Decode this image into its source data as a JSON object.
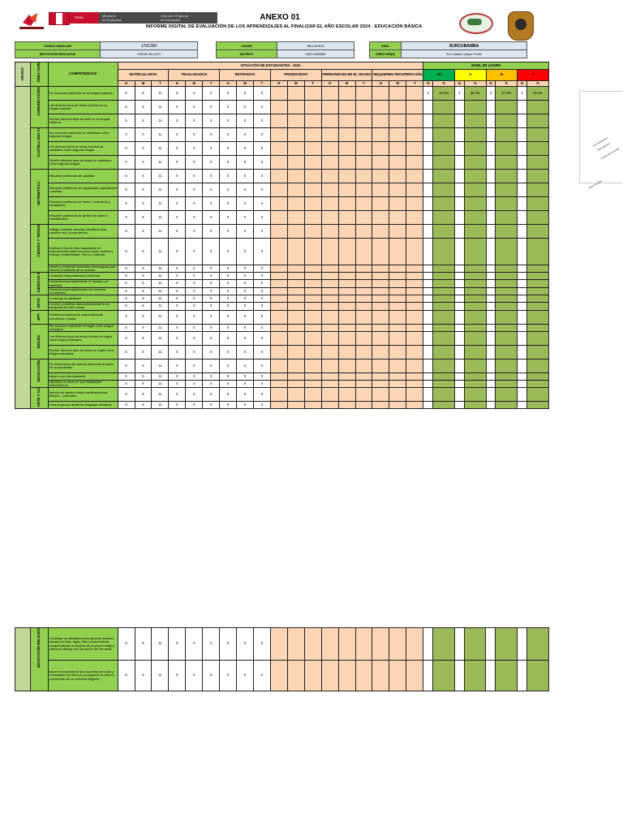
{
  "header": {
    "anexo": "ANEXO 01",
    "informe": "INFORME DIGITAL DE EVALUACIÓN DE LOS APRENDIZAJES AL FINALIZAR EL AÑO ESCOLAR 2024 - EDUCACIÓN BÁSICA",
    "flag_text": "PERÚ",
    "ministry_lines": [
      "Ministerio",
      "de Educación"
    ],
    "regional_lines": [
      "Dirección Regional",
      "de Educación"
    ]
  },
  "info": {
    "codigo_modular_label": "CODIGO MODULAR",
    "codigo_modular": "1701390",
    "lugar_label": "LUGAR",
    "lugar": "BELLAVISTA",
    "ugel_label": "UGEL",
    "ugel": "SURCUBAMBA",
    "institucion_label": "INSTITUCIÓN EDUCATIVA",
    "institucion": "CESAR VALLEJO",
    "distrito_label": "DISTRITO",
    "distrito": "SURCUBAMBA",
    "director_label": "DIRECTOR(A)",
    "director": "Prof. Alcides Quispe Porras"
  },
  "table_headers": {
    "grado": "GRADO",
    "area": "ÁREA CURRICULAR",
    "competencias": "COMPETENCIAS",
    "situacion": "SITUACIÓN DE ESTUDIANTES - 2023",
    "nivel": "NIVEL DE LOGRO",
    "groups": [
      "MATRICULADOS",
      "TRASLADADOS",
      "RETIRADOS",
      "PROMOVIDOS",
      "PERMANECEN EN EL GRADO",
      "REQUIEREN RECUPERACIÓN"
    ],
    "hmt": [
      "H",
      "M",
      "T"
    ],
    "levels": [
      "AD",
      "A",
      "B",
      "C"
    ],
    "np": [
      "N",
      "%"
    ]
  },
  "areas": [
    {
      "name": "COMUNICACIÓN",
      "rows": [
        {
          "c": "Se comunica oralmente en su lengua materna.",
          "v": [
            "5",
            "6",
            "11",
            "0",
            "0",
            "0",
            "0",
            "0",
            "0"
          ],
          "lv": [
            "2",
            "18.2%",
            "4",
            "36.4%",
            "3",
            "27.3%",
            "2",
            "18.2%"
          ]
        },
        {
          "c": "Lee diversos tipos de textos escritos en su lengua materna.",
          "v": [
            "5",
            "6",
            "11",
            "0",
            "0",
            "0",
            "0",
            "0",
            "0"
          ]
        },
        {
          "c": "Escribe diversos tipos de texto en su lengua materna.",
          "v": [
            "5",
            "6",
            "11",
            "0",
            "0",
            "0",
            "0",
            "0",
            "0"
          ]
        }
      ]
    },
    {
      "name": "CASTELLANO COMO SEGUNDA LENGUA",
      "rows": [
        {
          "c": "Se comunica oralmente en castellano como segunda lengua.",
          "v": [
            "0",
            "0",
            "11",
            "0",
            "0",
            "0",
            "0",
            "0",
            "0"
          ]
        },
        {
          "c": "Lee diversos tipos de textos escritos de castellano como segunda lengua.",
          "v": [
            "0",
            "0",
            "11",
            "0",
            "0",
            "0",
            "0",
            "0",
            "0"
          ]
        },
        {
          "c": "Escribe diversos tipos de textos en castellano como segunda lengua.",
          "v": [
            "0",
            "0",
            "11",
            "0",
            "0",
            "0",
            "0",
            "0",
            "0"
          ]
        }
      ]
    },
    {
      "name": "MATEMÁTICA",
      "rows": [
        {
          "c": "Resuelve problemas de cantidad.",
          "v": [
            "5",
            "6",
            "11",
            "0",
            "0",
            "0",
            "0",
            "0",
            "0"
          ]
        },
        {
          "c": "Resuelve problemas de regularidad, equivalencia y cambio.",
          "v": [
            "5",
            "6",
            "11",
            "0",
            "0",
            "0",
            "0",
            "0",
            "0"
          ]
        },
        {
          "c": "Resuelve problemas de forma, movimiento y localización.",
          "v": [
            "5",
            "6",
            "11",
            "0",
            "0",
            "0",
            "0",
            "0",
            "0"
          ]
        },
        {
          "c": "Resuelve problemas de gestión de datos e incertidumbre.",
          "v": [
            "5",
            "6",
            "11",
            "0",
            "0",
            "0",
            "0",
            "0",
            "0"
          ]
        }
      ]
    },
    {
      "name": "CIENCIA Y TECNOLOGÍA",
      "rows": [
        {
          "c": "Indaga mediante métodos científicos para construir sus conocimientos.",
          "v": [
            "5",
            "6",
            "11",
            "0",
            "0",
            "0",
            "0",
            "0",
            "0"
          ]
        },
        {
          "c": "Explica el mundo físico basándose en conocimientos sobre los seres vivos, materia y energía, biodiversidad, Tierra y Universo.",
          "v": [
            "5",
            "6",
            "11",
            "0",
            "0",
            "0",
            "0",
            "0",
            "0"
          ]
        },
        {
          "c": "Diseña y construye soluciones tecnológicas para resolver problemas de su entorno.",
          "v": [
            "5",
            "6",
            "11",
            "0",
            "0",
            "0",
            "0",
            "0",
            "0"
          ]
        }
      ]
    },
    {
      "name": "CIENCIAS SOCIALES",
      "rows": [
        {
          "c": "Construye interpretaciones históricas.",
          "v": [
            "5",
            "6",
            "11",
            "0",
            "0",
            "0",
            "0",
            "0",
            "0"
          ]
        },
        {
          "c": "Gestiona responsablemente el espacio y el ambiente.",
          "v": [
            "5",
            "6",
            "11",
            "0",
            "0",
            "0",
            "0",
            "0",
            "0"
          ]
        },
        {
          "c": "Gestiona responsablemente los recursos económicos.",
          "v": [
            "5",
            "6",
            "11",
            "0",
            "0",
            "0",
            "0",
            "0",
            "0"
          ]
        }
      ]
    },
    {
      "name": "DPCC",
      "rows": [
        {
          "c": "Construye su identidad.",
          "v": [
            "5",
            "6",
            "11",
            "0",
            "0",
            "0",
            "0",
            "0",
            "0"
          ]
        },
        {
          "c": "Convive y participa democráticamente en la búsqueda del bien común.",
          "v": [
            "5",
            "6",
            "11",
            "0",
            "0",
            "0",
            "0",
            "0",
            "0"
          ]
        }
      ]
    },
    {
      "name": "EPT",
      "rows": [
        {
          "c": "Gestiona proyectos de emprendimiento económico o social.",
          "v": [
            "5",
            "6",
            "11",
            "0",
            "0",
            "0",
            "0",
            "0",
            "0"
          ]
        }
      ]
    },
    {
      "name": "INGLÉS",
      "rows": [
        {
          "c": "Se comunica oralmente en inglés como lengua extranjera.",
          "v": [
            "5",
            "6",
            "11",
            "0",
            "0",
            "0",
            "0",
            "0",
            "0"
          ]
        },
        {
          "c": "Lee diversos tipos de textos escritos en inglés como lengua extranjera.",
          "v": [
            "5",
            "6",
            "11",
            "0",
            "0",
            "0",
            "0",
            "0",
            "0"
          ]
        },
        {
          "c": "Escribe diversos tipos de textos en inglés como lengua extranjera.",
          "v": [
            "5",
            "6",
            "11",
            "0",
            "0",
            "0",
            "0",
            "0",
            "0"
          ]
        }
      ]
    },
    {
      "name": "EDUCACIÓN FÍSICA",
      "rows": [
        {
          "c": "Se desenvuelve de manera autónoma a través de su motricidad.",
          "v": [
            "5",
            "6",
            "11",
            "0",
            "0",
            "0",
            "0",
            "0",
            "0"
          ]
        },
        {
          "c": "Asume una vida saludable.",
          "v": [
            "5",
            "6",
            "11",
            "0",
            "0",
            "0",
            "0",
            "0",
            "0"
          ]
        },
        {
          "c": "Interactúa a través de sus habilidades sociomotrices.",
          "v": [
            "5",
            "6",
            "11",
            "0",
            "0",
            "0",
            "0",
            "0",
            "0"
          ]
        }
      ]
    },
    {
      "name": "ARTE Y CULTURA",
      "rows": [
        {
          "c": "Aprecia de manera crítica manifestaciones artístico - culturales.",
          "v": [
            "5",
            "6",
            "11",
            "0",
            "0",
            "0",
            "0",
            "0",
            "0"
          ]
        },
        {
          "c": "Crea proyectos desde los lenguajes artísticos.",
          "v": [
            "5",
            "6",
            "11",
            "0",
            "0",
            "0",
            "0",
            "0",
            "0"
          ]
        }
      ]
    }
  ],
  "religion": {
    "name": "EDUCACIÓN RELIGIOSA",
    "rows": [
      {
        "c": "Construye su identidad como persona humana, amada por Dios, digna, libre y trascendente, comprendiendo la doctrina de su propia religión, abierto al diálogo con las que le son cercanas.",
        "v": [
          "5",
          "6",
          "11",
          "0",
          "0",
          "0",
          "0",
          "0",
          "0"
        ]
      },
      {
        "c": "Asume la experiencia del encuentro personal y comunitario con Dios en su proyecto de vida en coherencia con su creencia religiosa.",
        "v": [
          "5",
          "6",
          "11",
          "0",
          "0",
          "0",
          "0",
          "0",
          "0"
        ]
      }
    ]
  },
  "side_notes": [
    "Nivel de logro",
    "Los estudiantes",
    "Total general",
    "Cuadro de resumen"
  ]
}
